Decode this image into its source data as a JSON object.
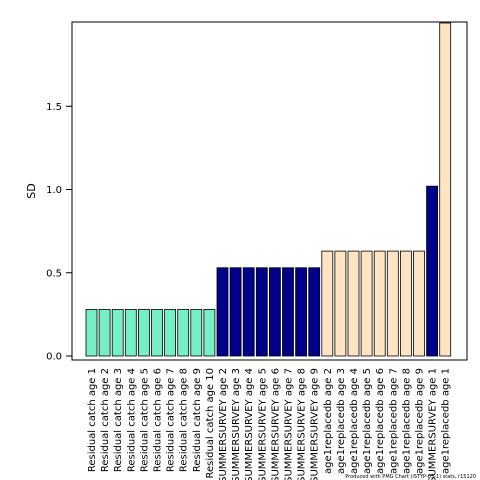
{
  "chart_data": {
    "type": "bar",
    "title": "",
    "xlabel": "",
    "ylabel": "SD",
    "ylim": [
      0,
      2.0
    ],
    "yticks": [
      "0.0",
      "0.5",
      "1.0",
      "1.5"
    ],
    "categories": [
      "Residual catch age 1",
      "Residual catch age 2",
      "Residual catch age 3",
      "Residual catch age 4",
      "Residual catch age 5",
      "Residual catch age 6",
      "Residual catch age 7",
      "Residual catch age 8",
      "Residual catch age 9",
      "Residual catch age 10",
      "SUMMERSURVEY age 2",
      "SUMMERSURVEY age 3",
      "SUMMERSURVEY age 4",
      "SUMMERSURVEY age 5",
      "SUMMERSURVEY age 6",
      "SUMMERSURVEY age 7",
      "SUMMERSURVEY age 8",
      "SUMMERSURVEY age 9",
      "age1replacedb age 2",
      "age1replacedb age 3",
      "age1replacedb age 4",
      "age1replacedb age 5",
      "age1replacedb age 6",
      "age1replacedb age 7",
      "age1replacedb age 8",
      "age1replacedb age 9",
      "SUMMERSURVEY age 1",
      "age1replacedb age 1"
    ],
    "values": [
      0.28,
      0.28,
      0.28,
      0.28,
      0.28,
      0.28,
      0.28,
      0.28,
      0.28,
      0.28,
      0.53,
      0.53,
      0.53,
      0.53,
      0.53,
      0.53,
      0.53,
      0.53,
      0.63,
      0.63,
      0.63,
      0.63,
      0.63,
      0.63,
      0.63,
      0.63,
      1.02,
      2.0
    ],
    "group": [
      0,
      0,
      0,
      0,
      0,
      0,
      0,
      0,
      0,
      0,
      1,
      1,
      1,
      1,
      1,
      1,
      1,
      1,
      2,
      2,
      2,
      2,
      2,
      2,
      2,
      2,
      1,
      2
    ],
    "colors": [
      "#76eec6",
      "#00008b",
      "#ffe4c4"
    ],
    "grid": false,
    "footnote": "Produced with PMG Chart (iSTYP-05-1) stats, r15120"
  }
}
